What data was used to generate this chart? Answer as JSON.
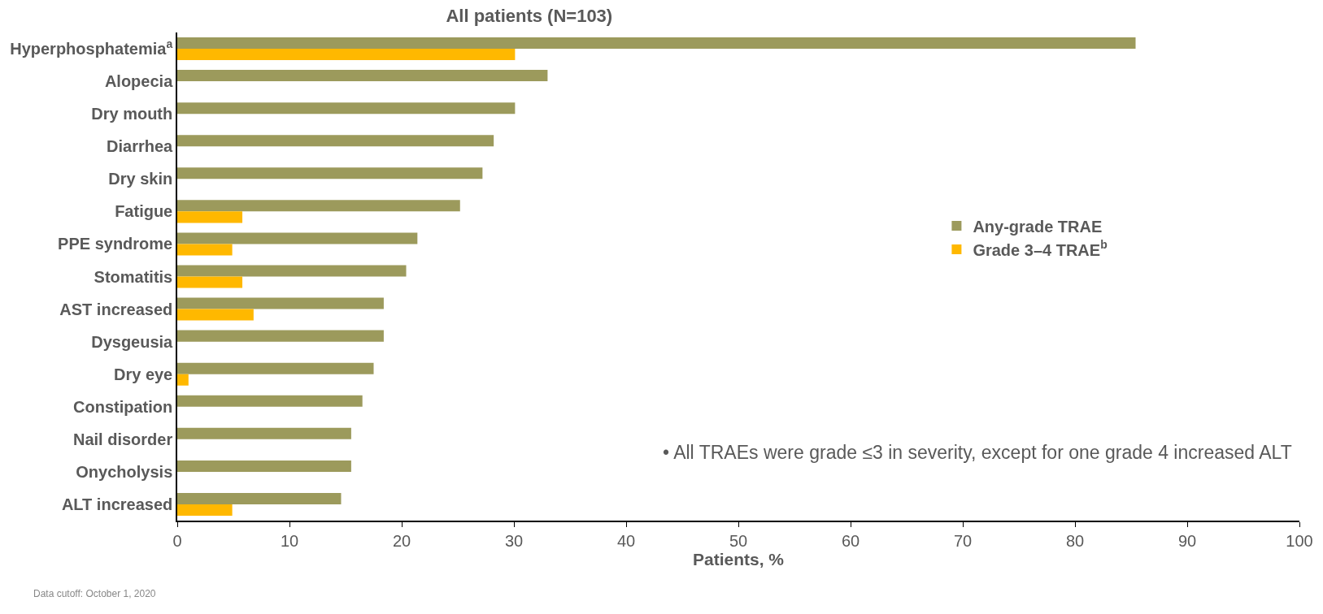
{
  "chart_data": {
    "type": "bar",
    "orientation": "horizontal",
    "title": "All patients (N=103)",
    "xlabel": "Patients, %",
    "categories": [
      "Hyperphosphatemia$^{a}$",
      "Alopecia",
      "Dry mouth",
      "Diarrhea",
      "Dry skin",
      "Fatigue",
      "PPE syndrome",
      "Stomatitis",
      "AST increased",
      "Dysgeusia",
      "Dry eye",
      "Constipation",
      "Nail disorder",
      "Onycholysis",
      "ALT increased"
    ],
    "series": [
      {
        "name": "Any-grade TRAE",
        "color": "#9c9a5c",
        "values": [
          85.4,
          33.0,
          30.1,
          28.2,
          27.2,
          25.2,
          21.4,
          20.4,
          18.4,
          18.4,
          17.5,
          16.5,
          15.5,
          15.5,
          14.6
        ]
      },
      {
        "name": "Grade 3–4 TRAE$^{b}$",
        "color": "#ffb800",
        "values": [
          30.1,
          null,
          null,
          null,
          null,
          5.8,
          4.9,
          5.8,
          6.8,
          null,
          1.0,
          null,
          null,
          null,
          4.9
        ]
      }
    ],
    "xlim": [
      0,
      100
    ],
    "xticks": [
      0,
      10,
      20,
      30,
      40,
      50,
      60,
      70,
      80,
      90,
      100
    ],
    "legend": "right",
    "annotations": [
      "• All TRAEs were grade ≤3 in severity, except for one grade 4 increased ALT",
      "Data cutoff: October 1, 2020"
    ]
  }
}
